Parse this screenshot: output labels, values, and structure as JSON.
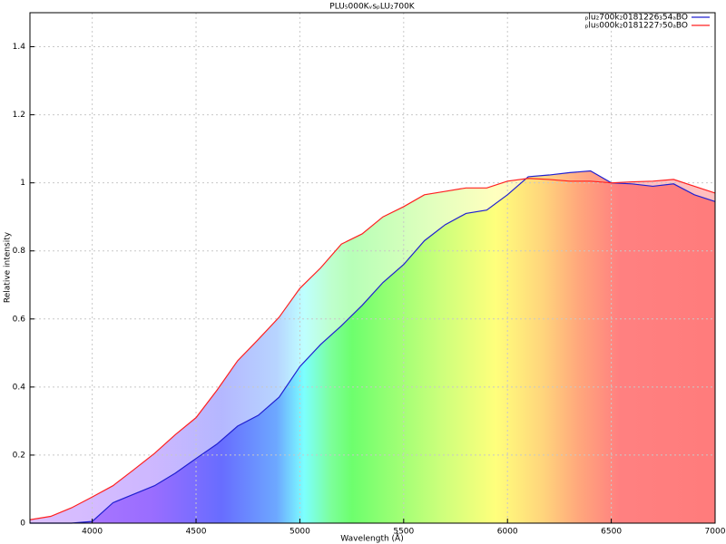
{
  "chart_data": {
    "type": "line",
    "title": "PLU₅000KᵥsₚLU₂700K",
    "x_label": "Wavelength (Å)",
    "y_label": "Relative intensity",
    "x": [
      3700,
      3800,
      3900,
      4000,
      4100,
      4200,
      4300,
      4400,
      4500,
      4600,
      4700,
      4800,
      4900,
      5000,
      5100,
      5200,
      5300,
      5400,
      5500,
      5600,
      5700,
      5800,
      5900,
      6000,
      6100,
      6200,
      6300,
      6400,
      6500,
      6600,
      6700,
      6800,
      6900,
      7000
    ],
    "series": [
      {
        "name": "ₚlu₂700k₂0181226₃54ₐBO",
        "color": "#2020d0",
        "values": [
          0,
          0,
          0,
          0.005,
          0.06,
          0.085,
          0.11,
          0.147,
          0.19,
          0.232,
          0.285,
          0.317,
          0.37,
          0.46,
          0.525,
          0.58,
          0.64,
          0.707,
          0.76,
          0.83,
          0.877,
          0.91,
          0.92,
          0.965,
          1.018,
          1.023,
          1.03,
          1.035,
          1.0,
          0.997,
          0.99,
          0.997,
          0.965,
          0.945
        ]
      },
      {
        "name": "ₚlu₅000k₂0181227₇50ₐBO",
        "color": "#ff2020",
        "values": [
          0.01,
          0.02,
          0.045,
          0.077,
          0.11,
          0.157,
          0.205,
          0.26,
          0.31,
          0.39,
          0.477,
          0.54,
          0.605,
          0.69,
          0.75,
          0.82,
          0.85,
          0.9,
          0.93,
          0.965,
          0.975,
          0.985,
          0.985,
          1.005,
          1.013,
          1.01,
          1.005,
          1.005,
          1.0,
          1.003,
          1.005,
          1.01,
          0.99,
          0.97
        ]
      }
    ],
    "xlim": [
      3700,
      7000
    ],
    "xticks": [
      4000,
      4500,
      5000,
      5500,
      6000,
      6500,
      7000
    ],
    "ylim": [
      0,
      1.5
    ],
    "yticks": [
      0,
      0.2,
      0.4,
      0.6,
      0.8,
      1,
      1.2,
      1.4
    ],
    "grid": true,
    "legend": "top-right"
  }
}
